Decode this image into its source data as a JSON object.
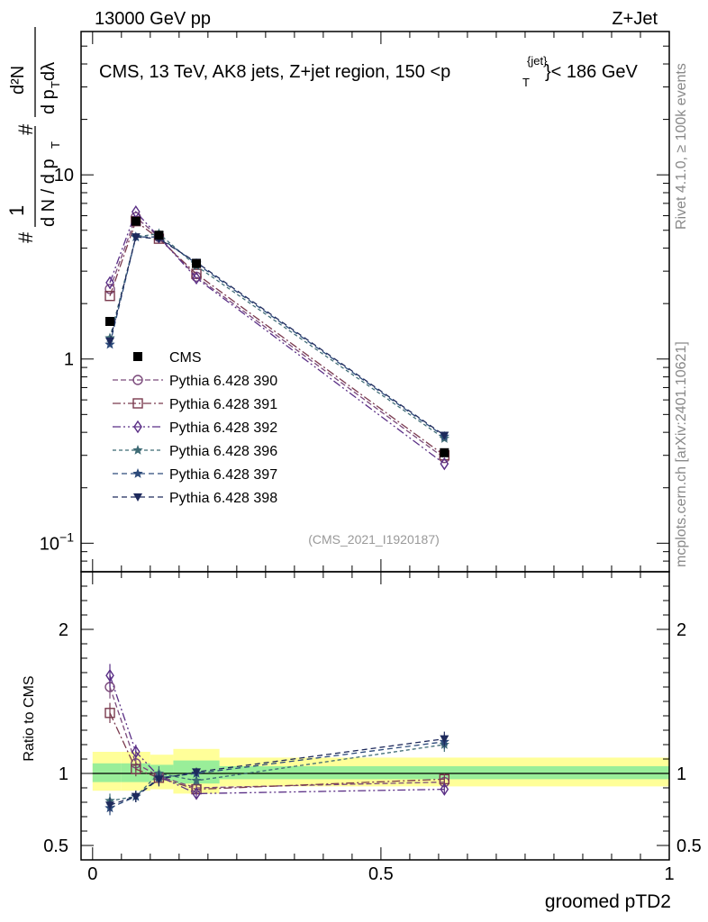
{
  "header": {
    "energy_label": "13000 GeV pp",
    "process_label": "Z+Jet",
    "side_label_top": "Rivet 4.1.0, ≥ 100k events",
    "side_label_bottom": "mcplots.cern.ch [arXiv:2401.10621]",
    "analysis_id": "(CMS_2021_I1920187)"
  },
  "main_title": {
    "prefix": "CMS, 13 TeV, AK8 jets, Z+jet region, 150 <p",
    "sup": "{jet}",
    "sub": "T",
    "suffix": "}< 186 GeV"
  },
  "y_axis_label": {
    "hash": "#",
    "one": "1",
    "den": "d N / d p",
    "den_sub": "T",
    "hash2": "#",
    "num": "d²N",
    "num_den": "d p",
    "num_den_sub": "T",
    "num_den_tail": " dλ"
  },
  "chart_data": [
    {
      "type": "line",
      "panel": "main",
      "yscale": "log",
      "ylim": [
        0.07,
        60
      ],
      "xlim": [
        -0.02,
        1.0
      ],
      "yticks": [
        {
          "value": 10,
          "label": "10"
        },
        {
          "value": 1,
          "label": "1"
        },
        {
          "value": 0.1,
          "label": "10",
          "exp": "−1"
        }
      ],
      "x": [
        0.03,
        0.075,
        0.115,
        0.18,
        0.61
      ],
      "reference": {
        "name": "CMS",
        "values": [
          1.6,
          5.6,
          4.7,
          3.3,
          0.31
        ],
        "color": "#000000"
      },
      "series": [
        {
          "name": "Pythia 6.428 390",
          "values": [
            2.4,
            5.9,
            4.6,
            2.8,
            0.29
          ],
          "color": "#7b4a7b",
          "marker": "circle",
          "dash": "6,3"
        },
        {
          "name": "Pythia 6.428 391",
          "values": [
            2.2,
            5.6,
            4.5,
            2.9,
            0.3
          ],
          "color": "#7a3a4e",
          "marker": "square",
          "dash": "9,3,2,3"
        },
        {
          "name": "Pythia 6.428 392",
          "values": [
            2.6,
            6.3,
            4.6,
            2.75,
            0.27
          ],
          "color": "#5a2f86",
          "marker": "diamond",
          "dash": "9,3,2,3,2,3"
        },
        {
          "name": "Pythia 6.428 396",
          "values": [
            1.3,
            4.6,
            4.8,
            3.2,
            0.37
          ],
          "color": "#3e6b75",
          "marker": "star",
          "dash": "4,3"
        },
        {
          "name": "Pythia 6.428 397",
          "values": [
            1.2,
            4.6,
            4.6,
            3.3,
            0.38
          ],
          "color": "#2c4a7a",
          "marker": "star",
          "dash": "6,4"
        },
        {
          "name": "Pythia 6.428 398",
          "values": [
            1.25,
            4.6,
            4.5,
            3.35,
            0.385
          ],
          "color": "#1e2a5c",
          "marker": "triangle-down",
          "dash": "6,4"
        }
      ],
      "legend_position": "left"
    },
    {
      "type": "line",
      "panel": "ratio",
      "ylabel": "Ratio to CMS",
      "xlabel": "groomed pTD2",
      "ylim": [
        0.4,
        2.4
      ],
      "xlim": [
        -0.02,
        1.0
      ],
      "yticks": [
        {
          "value": 2,
          "label": "2"
        },
        {
          "value": 1,
          "label": "1"
        },
        {
          "value": 0.5,
          "label": "0.5"
        }
      ],
      "xticks": [
        {
          "value": 0,
          "label": "0"
        },
        {
          "value": 0.5,
          "label": "0.5"
        },
        {
          "value": 1,
          "label": "1"
        }
      ],
      "bands": [
        {
          "x0": 0.0,
          "x1": 0.05,
          "yellow": [
            0.88,
            1.15
          ],
          "green": [
            0.94,
            1.07
          ]
        },
        {
          "x0": 0.05,
          "x1": 0.1,
          "yellow": [
            0.88,
            1.15
          ],
          "green": [
            0.94,
            1.07
          ]
        },
        {
          "x0": 0.1,
          "x1": 0.14,
          "yellow": [
            0.89,
            1.13
          ],
          "green": [
            0.95,
            1.06
          ]
        },
        {
          "x0": 0.14,
          "x1": 0.22,
          "yellow": [
            0.86,
            1.17
          ],
          "green": [
            0.93,
            1.09
          ]
        },
        {
          "x0": 0.22,
          "x1": 1.0,
          "yellow": [
            0.91,
            1.11
          ],
          "green": [
            0.96,
            1.05
          ]
        }
      ],
      "x": [
        0.03,
        0.075,
        0.115,
        0.18,
        0.61
      ],
      "series": [
        {
          "name": "Pythia 6.428 390",
          "values": [
            1.6,
            1.07,
            0.98,
            0.9,
            0.94
          ],
          "errors": [
            0.08,
            0.05,
            0.05,
            0.03,
            0.04
          ]
        },
        {
          "name": "Pythia 6.428 391",
          "values": [
            1.42,
            1.03,
            0.97,
            0.89,
            0.96
          ],
          "errors": [
            0.07,
            0.05,
            0.05,
            0.03,
            0.04
          ]
        },
        {
          "name": "Pythia 6.428 392",
          "values": [
            1.68,
            1.15,
            0.98,
            0.86,
            0.89
          ],
          "errors": [
            0.08,
            0.05,
            0.05,
            0.03,
            0.04
          ]
        },
        {
          "name": "Pythia 6.428 396",
          "values": [
            0.81,
            0.84,
            1.0,
            0.95,
            1.2
          ],
          "errors": [
            0.05,
            0.04,
            0.05,
            0.03,
            0.05
          ]
        },
        {
          "name": "Pythia 6.428 397",
          "values": [
            0.76,
            0.84,
            0.97,
            1.0,
            1.22
          ],
          "errors": [
            0.05,
            0.04,
            0.05,
            0.03,
            0.05
          ]
        },
        {
          "name": "Pythia 6.428 398",
          "values": [
            0.78,
            0.84,
            0.96,
            1.01,
            1.24
          ],
          "errors": [
            0.05,
            0.04,
            0.05,
            0.03,
            0.05
          ]
        }
      ],
      "band_colors": {
        "yellow": "#ffff99",
        "green": "#99ee99"
      }
    }
  ]
}
